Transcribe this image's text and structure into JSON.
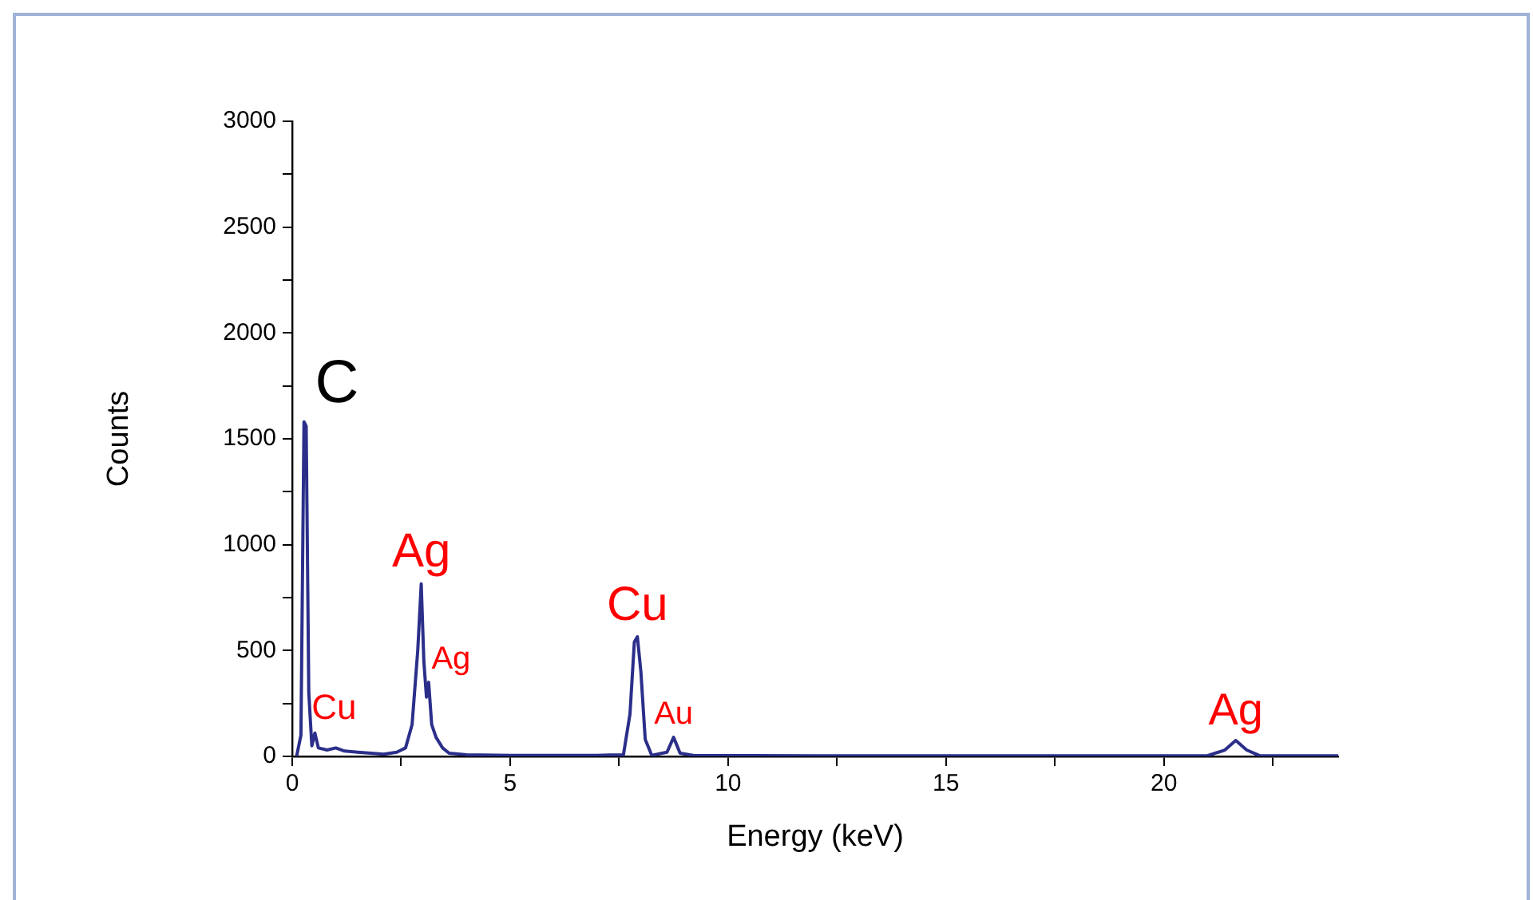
{
  "chart_data": {
    "type": "line",
    "xlabel": "Energy (keV)",
    "ylabel": "Counts",
    "x": [
      0.1,
      0.2,
      0.27,
      0.32,
      0.38,
      0.45,
      0.52,
      0.6,
      0.8,
      1.0,
      1.2,
      1.5,
      1.8,
      2.1,
      2.4,
      2.6,
      2.75,
      2.88,
      2.96,
      3.02,
      3.08,
      3.13,
      3.2,
      3.3,
      3.45,
      3.6,
      4,
      5,
      6,
      7,
      7.6,
      7.75,
      7.85,
      7.92,
      8.0,
      8.1,
      8.25,
      8.6,
      8.75,
      8.9,
      9.2,
      12,
      15,
      18,
      21,
      21.4,
      21.65,
      21.9,
      22.2,
      24
    ],
    "series": [
      {
        "color": "#2b2f8a",
        "values": [
          0,
          100,
          1580,
          1560,
          300,
          50,
          110,
          40,
          30,
          40,
          25,
          20,
          15,
          10,
          20,
          40,
          150,
          500,
          815,
          450,
          280,
          350,
          150,
          90,
          40,
          15,
          8,
          5,
          5,
          5,
          8,
          200,
          540,
          565,
          400,
          80,
          5,
          20,
          90,
          15,
          5,
          3,
          3,
          3,
          3,
          30,
          75,
          30,
          3,
          3
        ]
      }
    ],
    "xlim": [
      0,
      24
    ],
    "xticks": [
      0,
      {
        "value": 2.5,
        "label": null
      },
      5,
      {
        "value": 7.5,
        "label": null
      },
      10,
      {
        "value": 12.5,
        "label": null
      },
      15,
      {
        "value": 17.5,
        "label": null
      },
      20,
      {
        "value": 22.5,
        "label": null
      }
    ],
    "ylim": [
      0,
      3000
    ],
    "yticks": [
      0,
      {
        "value": 250,
        "label": null
      },
      500,
      {
        "value": 750,
        "label": null
      },
      1000,
      {
        "value": 1250,
        "label": null
      },
      1500,
      {
        "value": 1750,
        "label": null
      },
      2000,
      {
        "value": 2250,
        "label": null
      },
      2500,
      {
        "value": 2750,
        "label": null
      },
      3000
    ],
    "grid": false,
    "legend": false,
    "marker": "none",
    "line_style": "solid",
    "annotations": [
      {
        "text": "C",
        "x": 0.29,
        "y": 1580
      },
      {
        "text": "Cu",
        "x": 0.52,
        "y": 110
      },
      {
        "text": "Ag",
        "x": 2.96,
        "y": 815
      },
      {
        "text": "Ag",
        "x": 3.13,
        "y": 350
      },
      {
        "text": "Cu",
        "x": 7.92,
        "y": 565
      },
      {
        "text": "Au",
        "x": 8.75,
        "y": 90
      },
      {
        "text": "Ag",
        "x": 21.65,
        "y": 75
      }
    ]
  }
}
